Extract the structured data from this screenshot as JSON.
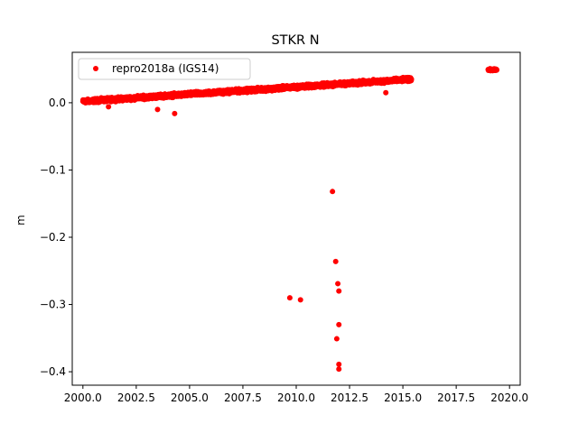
{
  "chart_data": {
    "type": "scatter",
    "title": "STKR N",
    "xlabel": "",
    "ylabel": "m",
    "xlim": [
      1999.5,
      2020.5
    ],
    "ylim": [
      -0.42,
      0.075
    ],
    "xticks": [
      2000.0,
      2002.5,
      2005.0,
      2007.5,
      2010.0,
      2012.5,
      2015.0,
      2017.5,
      2020.0
    ],
    "xtick_labels": [
      "2000.0",
      "2002.5",
      "2005.0",
      "2007.5",
      "2010.0",
      "2012.5",
      "2015.0",
      "2017.5",
      "2020.0"
    ],
    "yticks": [
      0.0,
      -0.1,
      -0.2,
      -0.3,
      -0.4
    ],
    "ytick_labels": [
      "0.0",
      "−0.1",
      "−0.2",
      "−0.3",
      "−0.4"
    ],
    "grid": false,
    "legend": {
      "placement": "top-left",
      "entries": [
        "repro2018a (IGS14)"
      ]
    },
    "series": [
      {
        "name": "repro2018a (IGS14)",
        "color": "#ff0000",
        "marker": "circle",
        "trend": {
          "segments": [
            {
              "x_start": 2000.0,
              "x_end": 2015.4,
              "y_start": 0.002,
              "y_end": 0.035,
              "scatter": 0.004
            },
            {
              "x_start": 2019.0,
              "x_end": 2019.4,
              "y_start": 0.049,
              "y_end": 0.049,
              "scatter": 0.002
            }
          ]
        },
        "outliers": [
          {
            "x": 2001.2,
            "y": -0.006
          },
          {
            "x": 2003.5,
            "y": -0.01
          },
          {
            "x": 2004.3,
            "y": -0.016
          },
          {
            "x": 2014.2,
            "y": 0.015
          },
          {
            "x": 2009.7,
            "y": -0.29
          },
          {
            "x": 2010.2,
            "y": -0.293
          },
          {
            "x": 2011.7,
            "y": -0.132
          },
          {
            "x": 2011.85,
            "y": -0.236
          },
          {
            "x": 2011.95,
            "y": -0.269
          },
          {
            "x": 2012.0,
            "y": -0.28
          },
          {
            "x": 2011.9,
            "y": -0.351
          },
          {
            "x": 2012.0,
            "y": -0.33
          },
          {
            "x": 2012.0,
            "y": -0.389
          },
          {
            "x": 2012.0,
            "y": -0.396
          }
        ]
      }
    ]
  }
}
